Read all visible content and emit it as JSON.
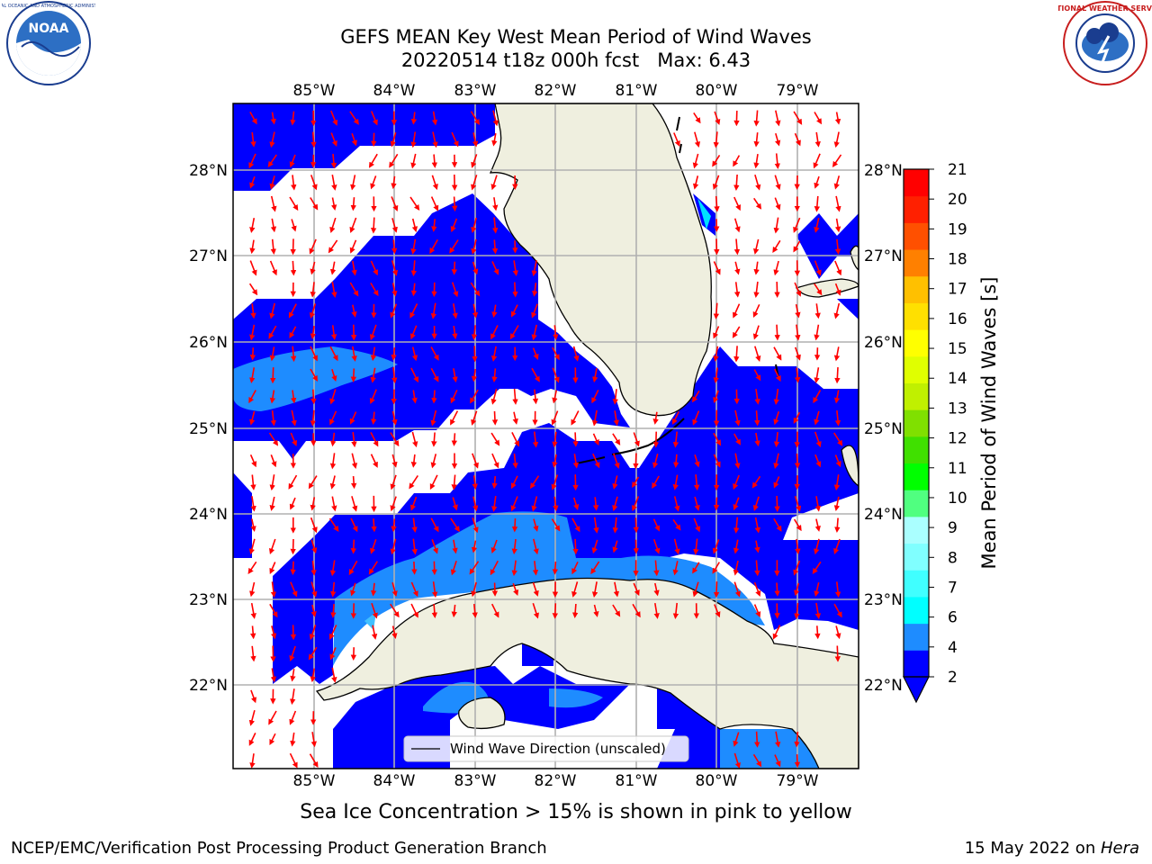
{
  "title": {
    "line1": "GEFS MEAN Key West Mean Period of Wind Waves",
    "line2": "20220514 t18z 000h fcst   Max: 6.43"
  },
  "logos": {
    "left": "noaa-logo",
    "right": "nws-logo"
  },
  "map": {
    "lon_labels": [
      "85°W",
      "84°W",
      "83°W",
      "82°W",
      "81°W",
      "80°W",
      "79°W"
    ],
    "lat_labels": [
      "28°N",
      "27°N",
      "26°N",
      "25°N",
      "24°N",
      "23°N",
      "22°N"
    ],
    "colors": {
      "land": "#efefdf",
      "sea_dark": "#0000ff",
      "sea_mid": "#1e8cff",
      "arrow": "#ff0000",
      "grid": "#b0b0b0"
    }
  },
  "legend": {
    "label": "Wind Wave Direction (unscaled)"
  },
  "colorbar": {
    "label": "Mean Period of Wind Waves [s]",
    "ticks": [
      "2",
      "4",
      "6",
      "7",
      "8",
      "9",
      "10",
      "11",
      "12",
      "13",
      "14",
      "15",
      "16",
      "17",
      "18",
      "19",
      "20",
      "21"
    ],
    "colors": [
      "#0000ff",
      "#1e8cff",
      "#00ffff",
      "#40ffff",
      "#80ffff",
      "#aaffff",
      "#50ff80",
      "#00ff00",
      "#40e000",
      "#80e000",
      "#c0f000",
      "#e0ff00",
      "#ffff00",
      "#ffe000",
      "#ffc000",
      "#ff8000",
      "#ff5000",
      "#ff2000",
      "#ff0000"
    ]
  },
  "bottom_note": "Sea Ice Concentration > 15% is shown in pink to yellow",
  "footer": {
    "left": "NCEP/EMC/Verification Post Processing Product Generation Branch",
    "right_date": "15 May 2022 on ",
    "right_host": "Hera"
  }
}
